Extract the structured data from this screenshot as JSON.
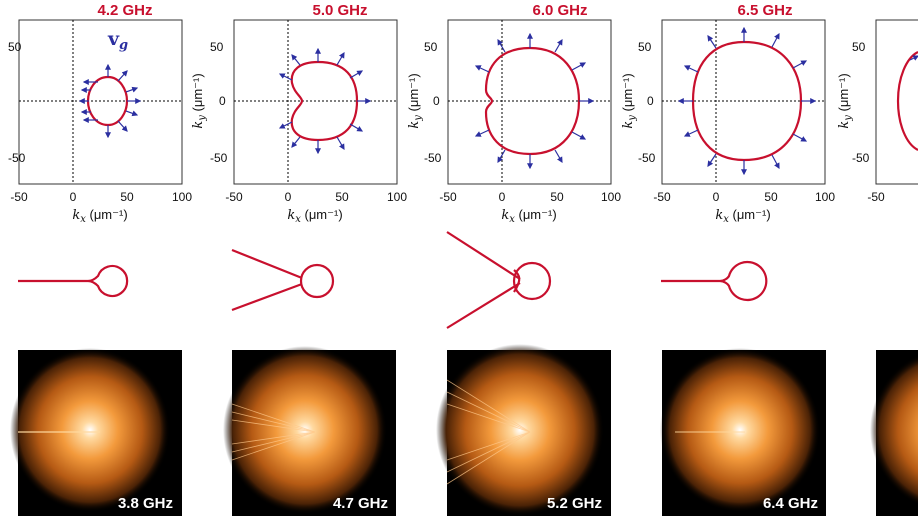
{
  "top_row": {
    "panels": [
      {
        "title": "4.2 GHz",
        "ylabel": "",
        "show_vg": true
      },
      {
        "title": "5.0 GHz",
        "ylabel": "k_y (μm⁻¹)",
        "show_vg": false
      },
      {
        "title": "6.0 GHz",
        "ylabel": "k_y (μm⁻¹)",
        "show_vg": false
      },
      {
        "title": "6.5 GHz",
        "ylabel": "k_y (μm⁻¹)",
        "show_vg": false
      },
      {
        "title": "",
        "ylabel": "k_y (μm⁻¹)",
        "show_vg": false
      }
    ],
    "xlabel_var": "k",
    "xlabel_sub": "x",
    "xlabel_unit": " (μm⁻¹)",
    "ylabel_var": "k",
    "ylabel_sub": "y",
    "ylabel_unit": " (μm⁻¹)",
    "x_ticks": [
      "-50",
      "0",
      "50",
      "100"
    ],
    "y_ticks": [
      "50",
      "0",
      "-50"
    ],
    "vg_symbol": "v",
    "vg_sub": "g",
    "curve_color": "#c8102e",
    "arrow_color": "#2b2fa0"
  },
  "bottom_row": {
    "labels": [
      "3.8 GHz",
      "4.7 GHz",
      "5.2 GHz",
      "6.4 GHz",
      ""
    ]
  },
  "chart_data": [
    {
      "type": "scatter",
      "title": "4.2 GHz",
      "xlabel": "k_x (μm⁻¹)",
      "ylabel": "",
      "xlim": [
        -50,
        100
      ],
      "ylim": [
        -70,
        70
      ],
      "contour": {
        "center_x": 34,
        "width_x": 27,
        "height_y": 40
      }
    },
    {
      "type": "scatter",
      "title": "5.0 GHz",
      "xlabel": "k_x (μm⁻¹)",
      "ylabel": "k_y (μm⁻¹)",
      "xlim": [
        -50,
        100
      ],
      "ylim": [
        -70,
        70
      ],
      "contour": {
        "min_x": 3,
        "max_x": 64,
        "max_y": 37
      }
    },
    {
      "type": "scatter",
      "title": "6.0 GHz",
      "xlabel": "k_x (μm⁻¹)",
      "ylabel": "k_y (μm⁻¹)",
      "xlim": [
        -50,
        100
      ],
      "ylim": [
        -70,
        70
      ],
      "contour": {
        "min_x": -13,
        "max_x": 74,
        "max_y": 48
      }
    },
    {
      "type": "scatter",
      "title": "6.5 GHz",
      "xlabel": "k_x (μm⁻¹)",
      "ylabel": "k_y (μm⁻¹)",
      "xlim": [
        -50,
        100
      ],
      "ylim": [
        -70,
        70
      ],
      "contour": {
        "min_x": -22,
        "max_x": 79,
        "max_y": 52
      }
    }
  ]
}
